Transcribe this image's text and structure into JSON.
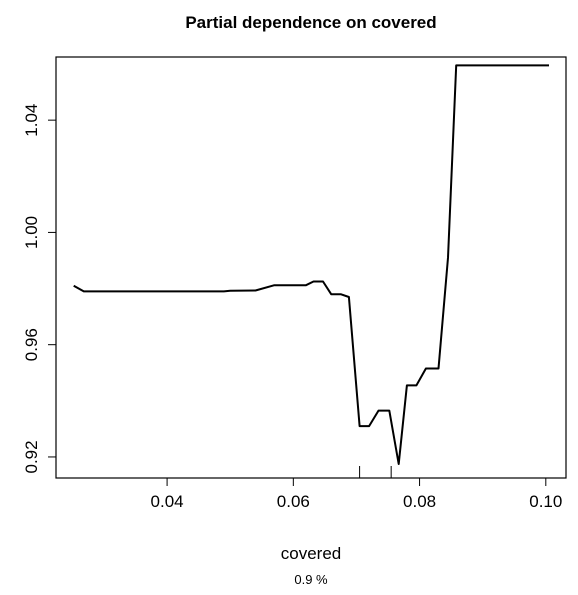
{
  "chart_data": {
    "type": "line",
    "title": "Partial dependence on covered",
    "xlabel": "covered",
    "subtitle": "0.9 %",
    "ylabel": "",
    "xlim": [
      0.0224,
      0.1032
    ],
    "ylim": [
      0.9125,
      1.0625
    ],
    "x_ticks": [
      0.04,
      0.06,
      0.08,
      0.1
    ],
    "x_tick_labels": [
      "0.04",
      "0.06",
      "0.08",
      "0.10"
    ],
    "y_ticks": [
      0.92,
      0.96,
      1.0,
      1.04
    ],
    "y_tick_labels": [
      "0.92",
      "0.96",
      "1.00",
      "1.04"
    ],
    "grid": false,
    "rug": [
      0.0705,
      0.0755
    ],
    "series": [
      {
        "color": "#000000",
        "x": [
          0.0252,
          0.0268,
          0.03,
          0.035,
          0.04,
          0.045,
          0.049,
          0.05,
          0.054,
          0.057,
          0.06,
          0.062,
          0.0632,
          0.0647,
          0.066,
          0.0675,
          0.0688,
          0.0705,
          0.072,
          0.0735,
          0.0752,
          0.0767,
          0.078,
          0.0795,
          0.081,
          0.082,
          0.083,
          0.0845,
          0.0858,
          0.087,
          0.09,
          0.095,
          0.1005
        ],
        "y": [
          0.981,
          0.979,
          0.979,
          0.979,
          0.979,
          0.979,
          0.979,
          0.9792,
          0.9793,
          0.9812,
          0.9812,
          0.9812,
          0.9825,
          0.9825,
          0.978,
          0.978,
          0.977,
          0.931,
          0.931,
          0.9365,
          0.9365,
          0.9175,
          0.9455,
          0.9455,
          0.9515,
          0.9515,
          0.9515,
          0.991,
          1.0595,
          1.0595,
          1.0595,
          1.0595,
          1.0595
        ]
      }
    ]
  }
}
